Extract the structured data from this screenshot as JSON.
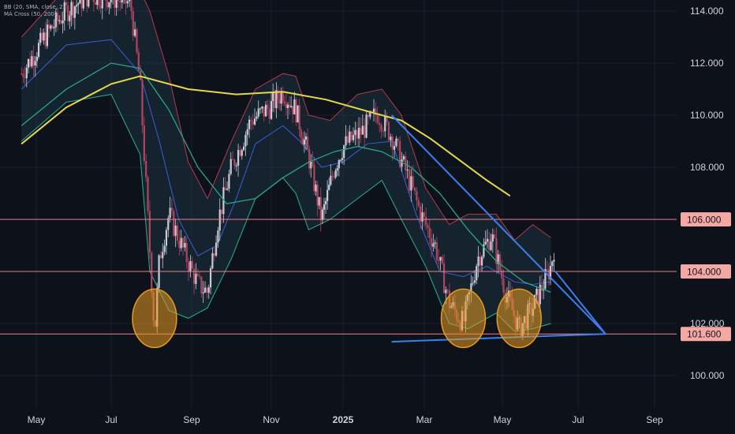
{
  "indicators": [
    "BB (20, SMA, close, 2)",
    "MA Cross (50, 200)"
  ],
  "colors": {
    "background": "#0d1119",
    "grid": "#1a1f2b",
    "candle_up": "#c8ccd6",
    "candle_down": "#b04560",
    "bb_upper": "#b23a4a",
    "bb_lower": "#2bb08f",
    "bb_basis": "#3d5dd8",
    "bb_fill": "#1d3a4a",
    "ma50": "#2aa58a",
    "ma200": "#e6d84a",
    "horizontal_level": "#f0808a",
    "trendline": "#3b7ff0",
    "highlight_circle": "#e89a20",
    "axis_text": "#d1d4dc",
    "label_bg": "#f4a7a3",
    "label_text": "#131722"
  },
  "chart_data": {
    "type": "candlestick",
    "y_axis": {
      "range": [
        99.2,
        114.6
      ],
      "ticks": [
        "100.000",
        "102.000",
        "104.000",
        "106.000",
        "108.000",
        "110.000",
        "112.000",
        "114.000"
      ]
    },
    "x_axis": {
      "ticks": [
        "May",
        "Jul",
        "Sep",
        "Nov",
        "2025",
        "Mar",
        "May",
        "Jul",
        "Sep"
      ]
    },
    "price_path": [
      [
        2024.3,
        111.6
      ],
      [
        2024.33,
        112.4
      ],
      [
        2024.36,
        113.2
      ],
      [
        2024.4,
        114.0
      ],
      [
        2024.45,
        114.6
      ],
      [
        2024.5,
        114.5
      ],
      [
        2024.54,
        114.3
      ],
      [
        2024.56,
        111.2
      ],
      [
        2024.59,
        101.6
      ],
      [
        2024.6,
        104.5
      ],
      [
        2024.62,
        106.2
      ],
      [
        2024.65,
        104.8
      ],
      [
        2024.68,
        103.5
      ],
      [
        2024.7,
        103.2
      ],
      [
        2024.72,
        105.8
      ],
      [
        2024.75,
        108.0
      ],
      [
        2024.79,
        109.8
      ],
      [
        2024.83,
        110.3
      ],
      [
        2024.86,
        110.9
      ],
      [
        2024.89,
        110.2
      ],
      [
        2024.92,
        108.4
      ],
      [
        2024.95,
        106.0
      ],
      [
        2024.98,
        108.0
      ],
      [
        2025.0,
        108.8
      ],
      [
        2025.04,
        109.4
      ],
      [
        2025.07,
        110.1
      ],
      [
        2025.1,
        109.2
      ],
      [
        2025.13,
        107.8
      ],
      [
        2025.16,
        106.2
      ],
      [
        2025.19,
        105.0
      ],
      [
        2025.22,
        102.8
      ],
      [
        2025.25,
        102.0
      ],
      [
        2025.28,
        104.5
      ],
      [
        2025.31,
        105.4
      ],
      [
        2025.34,
        103.2
      ],
      [
        2025.37,
        101.8
      ],
      [
        2025.4,
        102.6
      ],
      [
        2025.42,
        103.4
      ],
      [
        2025.44,
        104.2
      ],
      [
        2025.45,
        105.2
      ]
    ],
    "bb_upper": [
      [
        2024.3,
        113.0
      ],
      [
        2024.4,
        114.9
      ],
      [
        2024.5,
        115.0
      ],
      [
        2024.56,
        114.8
      ],
      [
        2024.58,
        114.0
      ],
      [
        2024.62,
        111.5
      ],
      [
        2024.66,
        108.2
      ],
      [
        2024.7,
        106.8
      ],
      [
        2024.75,
        109.0
      ],
      [
        2024.8,
        111.0
      ],
      [
        2024.86,
        111.6
      ],
      [
        2024.89,
        111.5
      ],
      [
        2024.92,
        110.0
      ],
      [
        2024.97,
        109.8
      ],
      [
        2025.03,
        110.8
      ],
      [
        2025.08,
        111.0
      ],
      [
        2025.12,
        110.0
      ],
      [
        2025.17,
        107.2
      ],
      [
        2025.22,
        105.8
      ],
      [
        2025.26,
        106.2
      ],
      [
        2025.32,
        106.2
      ],
      [
        2025.36,
        105.2
      ],
      [
        2025.4,
        105.8
      ],
      [
        2025.44,
        105.3
      ]
    ],
    "bb_lower": [
      [
        2024.3,
        109.0
      ],
      [
        2024.4,
        110.5
      ],
      [
        2024.5,
        110.8
      ],
      [
        2024.56,
        108.5
      ],
      [
        2024.58,
        104.0
      ],
      [
        2024.62,
        102.5
      ],
      [
        2024.66,
        102.2
      ],
      [
        2024.7,
        102.6
      ],
      [
        2024.75,
        104.5
      ],
      [
        2024.8,
        106.8
      ],
      [
        2024.86,
        107.6
      ],
      [
        2024.89,
        107.0
      ],
      [
        2024.92,
        105.6
      ],
      [
        2024.97,
        106.0
      ],
      [
        2025.03,
        106.8
      ],
      [
        2025.08,
        107.5
      ],
      [
        2025.12,
        106.0
      ],
      [
        2025.17,
        104.2
      ],
      [
        2025.22,
        102.0
      ],
      [
        2025.26,
        101.8
      ],
      [
        2025.32,
        102.4
      ],
      [
        2025.36,
        101.7
      ],
      [
        2025.4,
        101.8
      ],
      [
        2025.44,
        102.0
      ]
    ],
    "bb_basis": [
      [
        2024.3,
        111.0
      ],
      [
        2024.4,
        112.7
      ],
      [
        2024.5,
        112.9
      ],
      [
        2024.56,
        111.6
      ],
      [
        2024.6,
        109.0
      ],
      [
        2024.64,
        106.0
      ],
      [
        2024.68,
        104.6
      ],
      [
        2024.72,
        105.0
      ],
      [
        2024.76,
        106.8
      ],
      [
        2024.8,
        108.9
      ],
      [
        2024.86,
        109.6
      ],
      [
        2024.9,
        109.0
      ],
      [
        2024.95,
        108.0
      ],
      [
        2025.0,
        108.2
      ],
      [
        2025.05,
        108.9
      ],
      [
        2025.1,
        109.0
      ],
      [
        2025.15,
        106.2
      ],
      [
        2025.2,
        104.0
      ],
      [
        2025.25,
        103.8
      ],
      [
        2025.3,
        104.2
      ],
      [
        2025.36,
        103.6
      ],
      [
        2025.4,
        103.5
      ],
      [
        2025.44,
        103.6
      ]
    ],
    "ma50": [
      [
        2024.3,
        109.6
      ],
      [
        2024.4,
        111.0
      ],
      [
        2024.5,
        112.0
      ],
      [
        2024.56,
        111.8
      ],
      [
        2024.62,
        110.2
      ],
      [
        2024.68,
        108.0
      ],
      [
        2024.74,
        106.6
      ],
      [
        2024.8,
        106.8
      ],
      [
        2024.86,
        107.6
      ],
      [
        2024.92,
        108.2
      ],
      [
        2024.98,
        108.6
      ],
      [
        2025.03,
        108.8
      ],
      [
        2025.08,
        108.6
      ],
      [
        2025.14,
        108.0
      ],
      [
        2025.2,
        107.0
      ],
      [
        2025.26,
        105.6
      ],
      [
        2025.32,
        104.4
      ],
      [
        2025.38,
        103.6
      ],
      [
        2025.44,
        103.2
      ]
    ],
    "ma200": [
      [
        2024.3,
        108.9
      ],
      [
        2024.4,
        110.3
      ],
      [
        2024.5,
        111.2
      ],
      [
        2024.56,
        111.5
      ],
      [
        2024.66,
        111.0
      ],
      [
        2024.76,
        110.8
      ],
      [
        2024.86,
        110.9
      ],
      [
        2024.96,
        110.6
      ],
      [
        2025.06,
        110.1
      ],
      [
        2025.12,
        109.8
      ],
      [
        2025.18,
        109.1
      ],
      [
        2025.24,
        108.3
      ],
      [
        2025.3,
        107.5
      ],
      [
        2025.35,
        106.9
      ]
    ],
    "horizontal_levels": [
      {
        "value": 106.0,
        "label": "106.000"
      },
      {
        "value": 104.0,
        "label": "104.000"
      },
      {
        "value": 101.6,
        "label": "101.600"
      }
    ],
    "trendlines": [
      {
        "name": "descending",
        "from": [
          2025.1,
          110.0
        ],
        "to": [
          2025.56,
          101.6
        ]
      },
      {
        "name": "support",
        "from": [
          2025.1,
          101.3
        ],
        "to": [
          2025.56,
          101.6
        ]
      },
      {
        "name": "apex-connector",
        "from": [
          2025.45,
          104.0
        ],
        "to": [
          2025.56,
          101.6
        ]
      }
    ],
    "highlight_circles": [
      {
        "x": 2024.59,
        "y": 102.2
      },
      {
        "x": 2025.25,
        "y": 102.2
      },
      {
        "x": 2025.37,
        "y": 102.2
      }
    ]
  }
}
